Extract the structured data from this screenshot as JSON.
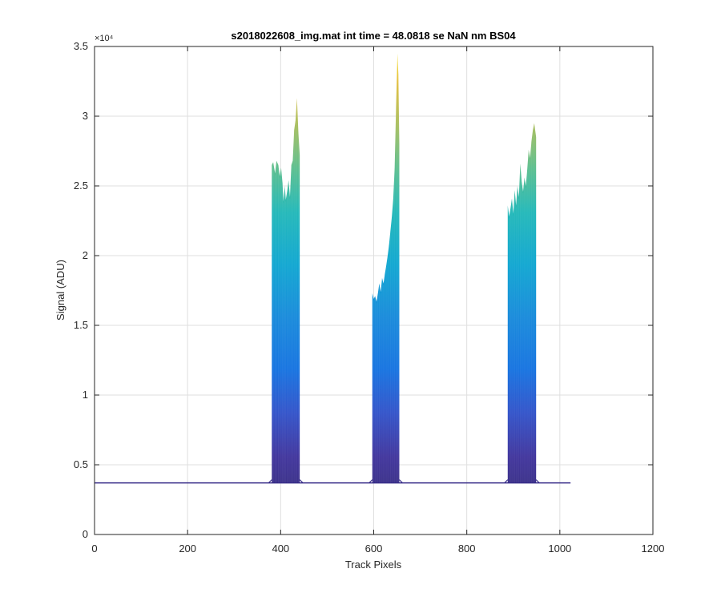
{
  "chart_data": {
    "type": "area",
    "title": "s2018022608_img.mat int time = 48.0818 se  NaN nm BS04",
    "xlabel": "Track Pixels",
    "ylabel": "Signal (ADU)",
    "xlim": [
      0,
      1200
    ],
    "ylim": [
      0,
      35000
    ],
    "x_ticks": [
      0,
      200,
      400,
      600,
      800,
      1000,
      1200
    ],
    "x_tick_labels": [
      "0",
      "200",
      "400",
      "600",
      "800",
      "1000",
      "1200"
    ],
    "y_ticks": [
      0,
      5000,
      10000,
      15000,
      20000,
      25000,
      30000,
      35000
    ],
    "y_tick_labels": [
      "0",
      "0.5",
      "1",
      "1.5",
      "2",
      "2.5",
      "3",
      "3.5"
    ],
    "y_exponent_label": "×10⁴",
    "grid": true,
    "colormap": "parula",
    "colors": {
      "axis": "#262626",
      "grid": "#dfdfdf",
      "baseline": "#352a87",
      "low": "#352a87",
      "mid": "#0f5cdd",
      "cyan": "#1cb4c8",
      "green": "#7fbf62",
      "high": "#f9d32a"
    },
    "baseline": {
      "x_range": [
        0,
        1023
      ],
      "value": 3700
    },
    "peaks": [
      {
        "x_range": [
          381,
          441
        ],
        "top_edge": [
          [
            381,
            26500
          ],
          [
            384,
            26700
          ],
          [
            388,
            25900
          ],
          [
            391,
            26800
          ],
          [
            395,
            26500
          ],
          [
            398,
            25700
          ],
          [
            401,
            26300
          ],
          [
            404,
            25200
          ],
          [
            406,
            23900
          ],
          [
            409,
            25000
          ],
          [
            411,
            24000
          ],
          [
            414,
            24600
          ],
          [
            417,
            25400
          ],
          [
            420,
            24200
          ],
          [
            423,
            26500
          ],
          [
            426,
            26800
          ],
          [
            429,
            29000
          ],
          [
            432,
            29700
          ],
          [
            435,
            31300
          ],
          [
            438,
            28900
          ],
          [
            441,
            27200
          ]
        ]
      },
      {
        "x_range": [
          597,
          655
        ],
        "top_edge": [
          [
            597,
            17300
          ],
          [
            600,
            16900
          ],
          [
            603,
            17100
          ],
          [
            606,
            16700
          ],
          [
            609,
            17300
          ],
          [
            612,
            18000
          ],
          [
            615,
            17400
          ],
          [
            618,
            18400
          ],
          [
            621,
            18000
          ],
          [
            624,
            18700
          ],
          [
            627,
            19300
          ],
          [
            630,
            20000
          ],
          [
            633,
            20800
          ],
          [
            636,
            21800
          ],
          [
            639,
            22800
          ],
          [
            642,
            24100
          ],
          [
            645,
            26300
          ],
          [
            648,
            30600
          ],
          [
            651,
            34500
          ],
          [
            653,
            33000
          ],
          [
            655,
            28000
          ]
        ]
      },
      {
        "x_range": [
          888,
          949
        ],
        "top_edge": [
          [
            888,
            23600
          ],
          [
            891,
            22800
          ],
          [
            894,
            23400
          ],
          [
            897,
            24100
          ],
          [
            900,
            23000
          ],
          [
            903,
            24700
          ],
          [
            906,
            23600
          ],
          [
            909,
            25000
          ],
          [
            912,
            24200
          ],
          [
            915,
            26600
          ],
          [
            918,
            25300
          ],
          [
            921,
            24600
          ],
          [
            924,
            25600
          ],
          [
            927,
            25000
          ],
          [
            930,
            26200
          ],
          [
            933,
            27600
          ],
          [
            936,
            27000
          ],
          [
            939,
            28200
          ],
          [
            942,
            29000
          ],
          [
            945,
            29500
          ],
          [
            949,
            28500
          ]
        ]
      }
    ]
  }
}
